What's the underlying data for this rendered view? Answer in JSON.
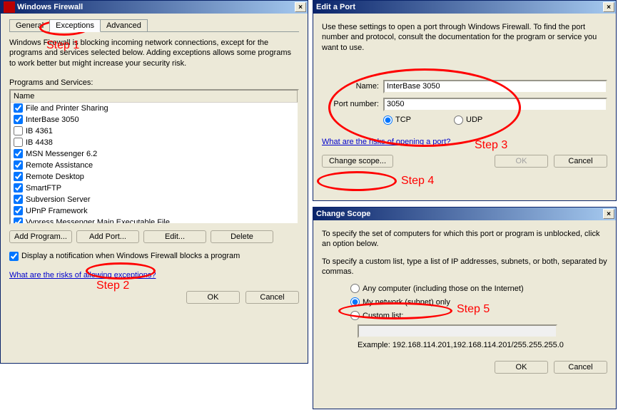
{
  "colors": {
    "annotation": "#ff0000",
    "titlebar_start": "#0a246a",
    "titlebar_end": "#a6caf0",
    "dialog_bg": "#ece9d8",
    "link": "#0000cc"
  },
  "annotations": [
    {
      "label": "Step 1",
      "target": "exceptions-tab"
    },
    {
      "label": "Step 2",
      "target": "add-port-button"
    },
    {
      "label": "Step 3",
      "target": "edit-port-fields"
    },
    {
      "label": "Step 4",
      "target": "change-scope-button"
    },
    {
      "label": "Step 5",
      "target": "my-network-radio"
    }
  ],
  "firewall": {
    "title": "Windows Firewall",
    "tabs": [
      "General",
      "Exceptions",
      "Advanced"
    ],
    "active_tab": 1,
    "desc": "Windows Firewall is blocking incoming network connections, except for the programs and services selected below. Adding exceptions allows some programs to work better but might increase your security risk.",
    "list_label": "Programs and Services:",
    "list_header": "Name",
    "items": [
      {
        "label": "File and Printer Sharing",
        "checked": true
      },
      {
        "label": "InterBase 3050",
        "checked": true
      },
      {
        "label": "IB 4361",
        "checked": false
      },
      {
        "label": "IB 4438",
        "checked": false
      },
      {
        "label": "MSN Messenger 6.2",
        "checked": true
      },
      {
        "label": "Remote Assistance",
        "checked": true
      },
      {
        "label": "Remote Desktop",
        "checked": true
      },
      {
        "label": "SmartFTP",
        "checked": true
      },
      {
        "label": "Subversion Server",
        "checked": true
      },
      {
        "label": "UPnP Framework",
        "checked": true
      },
      {
        "label": "Vypress Messenger Main Executable File",
        "checked": true
      }
    ],
    "buttons": {
      "add_program": "Add Program...",
      "add_port": "Add Port...",
      "edit": "Edit...",
      "delete": "Delete"
    },
    "notify_checked": true,
    "notify_label": "Display a notification when Windows Firewall blocks a program",
    "risks_link": "What are the risks of allowing exceptions?",
    "ok": "OK",
    "cancel": "Cancel"
  },
  "editport": {
    "title": "Edit a Port",
    "desc": "Use these settings to open a port through Windows Firewall. To find the port number and protocol, consult the documentation for the program or service you want to use.",
    "name_label": "Name:",
    "name_value": "InterBase 3050",
    "port_label": "Port number:",
    "port_value": "3050",
    "proto_tcp": "TCP",
    "proto_udp": "UDP",
    "proto_selected": "tcp",
    "risks_link": "What are the risks of opening a port?",
    "change_scope": "Change scope...",
    "ok": "OK",
    "cancel": "Cancel"
  },
  "scope": {
    "title": "Change Scope",
    "desc1": "To specify the set of computers for which this port or program is unblocked, click an option below.",
    "desc2": "To specify a custom list, type a list of IP addresses, subnets, or both, separated by commas.",
    "opt_any": "Any computer (including those on the Internet)",
    "opt_mynet": "My network (subnet) only",
    "opt_custom": "Custom list:",
    "selected": "mynet",
    "example": "Example: 192.168.114.201,192.168.114.201/255.255.255.0",
    "ok": "OK",
    "cancel": "Cancel"
  }
}
